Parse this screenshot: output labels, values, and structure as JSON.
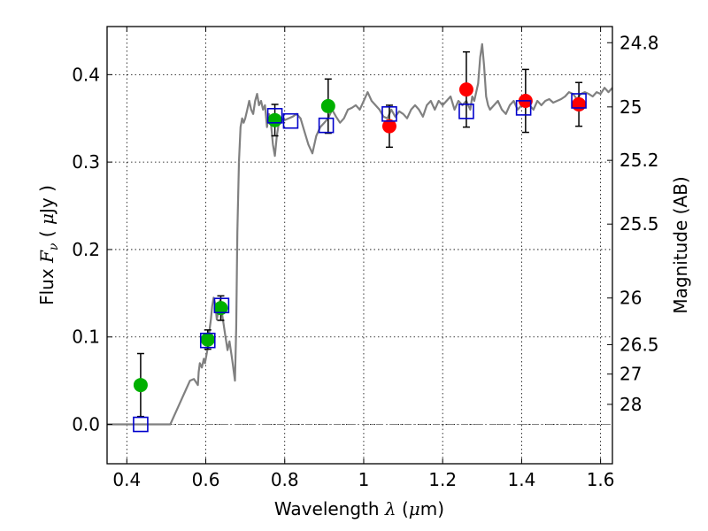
{
  "chart_data": {
    "type": "scatter",
    "title": "",
    "xlabel": {
      "prefix": "Wavelength ",
      "symbol": "λ",
      "unit_open": " (",
      "unit_mu": "μ",
      "unit_rest": "m)"
    },
    "ylabel": {
      "prefix": "Flux ",
      "symbol": "F",
      "sub": "ν",
      "unit_open": "  ( ",
      "unit_mu": "μ",
      "unit_rest": "Jy )"
    },
    "y2label": "Magnitude (AB)",
    "xlim": [
      0.35,
      1.63
    ],
    "ylim": [
      -0.045,
      0.455
    ],
    "grid": true,
    "x_ticks": [
      {
        "value": 0.4,
        "label": "0.4"
      },
      {
        "value": 0.6,
        "label": "0.6"
      },
      {
        "value": 0.8,
        "label": "0.8"
      },
      {
        "value": 1.0,
        "label": "1"
      },
      {
        "value": 1.2,
        "label": "1.2"
      },
      {
        "value": 1.4,
        "label": "1.4"
      },
      {
        "value": 1.6,
        "label": "1.6"
      }
    ],
    "y_ticks": [
      {
        "value": 0.0,
        "label": "0.0"
      },
      {
        "value": 0.1,
        "label": "0.1"
      },
      {
        "value": 0.2,
        "label": "0.2"
      },
      {
        "value": 0.3,
        "label": "0.3"
      },
      {
        "value": 0.4,
        "label": "0.4"
      }
    ],
    "mag_ticks": [
      {
        "value": 24.8,
        "label": "24.8"
      },
      {
        "value": 25.0,
        "label": "25"
      },
      {
        "value": 25.2,
        "label": "25.2"
      },
      {
        "value": 25.5,
        "label": "25.5"
      },
      {
        "value": 26.0,
        "label": "26"
      },
      {
        "value": 26.5,
        "label": "26.5"
      },
      {
        "value": 27.0,
        "label": "27"
      },
      {
        "value": 28.0,
        "label": "28"
      }
    ],
    "series": [
      {
        "kind": "model-spectrum",
        "color": "#808080",
        "x": [
          0.35,
          0.5,
          0.51,
          0.53,
          0.55,
          0.56,
          0.57,
          0.58,
          0.582,
          0.585,
          0.59,
          0.595,
          0.598,
          0.602,
          0.606,
          0.61,
          0.613,
          0.616,
          0.62,
          0.624,
          0.628,
          0.632,
          0.636,
          0.64,
          0.645,
          0.65,
          0.655,
          0.66,
          0.665,
          0.668,
          0.671,
          0.674,
          0.677,
          0.68,
          0.684,
          0.688,
          0.692,
          0.696,
          0.7,
          0.705,
          0.71,
          0.715,
          0.72,
          0.725,
          0.73,
          0.735,
          0.74,
          0.745,
          0.75,
          0.755,
          0.76,
          0.765,
          0.77,
          0.775,
          0.78,
          0.785,
          0.79,
          0.8,
          0.81,
          0.82,
          0.83,
          0.84,
          0.85,
          0.86,
          0.87,
          0.88,
          0.89,
          0.9,
          0.91,
          0.92,
          0.93,
          0.94,
          0.95,
          0.96,
          0.97,
          0.98,
          0.99,
          1.0,
          1.01,
          1.02,
          1.03,
          1.04,
          1.05,
          1.06,
          1.07,
          1.08,
          1.09,
          1.1,
          1.11,
          1.12,
          1.13,
          1.14,
          1.15,
          1.16,
          1.17,
          1.18,
          1.19,
          1.2,
          1.21,
          1.22,
          1.23,
          1.24,
          1.25,
          1.26,
          1.27,
          1.275,
          1.28,
          1.285,
          1.29,
          1.295,
          1.3,
          1.305,
          1.31,
          1.315,
          1.32,
          1.33,
          1.34,
          1.35,
          1.36,
          1.37,
          1.38,
          1.39,
          1.4,
          1.41,
          1.42,
          1.43,
          1.44,
          1.45,
          1.46,
          1.47,
          1.48,
          1.49,
          1.5,
          1.51,
          1.52,
          1.53,
          1.54,
          1.55,
          1.56,
          1.57,
          1.58,
          1.59,
          1.6,
          1.61,
          1.62,
          1.63
        ],
        "y": [
          0.0,
          0.0,
          0.0,
          0.02,
          0.04,
          0.05,
          0.052,
          0.045,
          0.06,
          0.07,
          0.065,
          0.075,
          0.07,
          0.08,
          0.09,
          0.11,
          0.12,
          0.135,
          0.145,
          0.138,
          0.12,
          0.13,
          0.142,
          0.13,
          0.115,
          0.1,
          0.085,
          0.095,
          0.08,
          0.07,
          0.06,
          0.05,
          0.11,
          0.22,
          0.3,
          0.34,
          0.35,
          0.345,
          0.35,
          0.36,
          0.37,
          0.36,
          0.355,
          0.37,
          0.378,
          0.365,
          0.37,
          0.36,
          0.365,
          0.34,
          0.355,
          0.345,
          0.32,
          0.307,
          0.33,
          0.345,
          0.35,
          0.348,
          0.35,
          0.352,
          0.355,
          0.35,
          0.335,
          0.32,
          0.31,
          0.33,
          0.34,
          0.345,
          0.35,
          0.36,
          0.352,
          0.345,
          0.35,
          0.36,
          0.362,
          0.365,
          0.36,
          0.37,
          0.38,
          0.37,
          0.365,
          0.36,
          0.352,
          0.35,
          0.36,
          0.352,
          0.358,
          0.355,
          0.35,
          0.36,
          0.365,
          0.36,
          0.352,
          0.365,
          0.37,
          0.36,
          0.37,
          0.365,
          0.37,
          0.375,
          0.36,
          0.37,
          0.365,
          0.37,
          0.36,
          0.375,
          0.37,
          0.38,
          0.39,
          0.42,
          0.435,
          0.41,
          0.375,
          0.365,
          0.36,
          0.365,
          0.37,
          0.36,
          0.355,
          0.365,
          0.37,
          0.36,
          0.365,
          0.37,
          0.365,
          0.36,
          0.37,
          0.365,
          0.37,
          0.372,
          0.368,
          0.37,
          0.372,
          0.375,
          0.38,
          0.378,
          0.372,
          0.378,
          0.38,
          0.378,
          0.375,
          0.38,
          0.378,
          0.385,
          0.38,
          0.385
        ]
      },
      {
        "kind": "green-points",
        "marker": "circle",
        "color": "#00b000",
        "points": [
          {
            "x": 0.435,
            "y": 0.045,
            "yerr": 0.036
          },
          {
            "x": 0.605,
            "y": 0.097,
            "yerr": 0.011
          },
          {
            "x": 0.638,
            "y": 0.133,
            "yerr": 0.014
          },
          {
            "x": 0.775,
            "y": 0.348,
            "yerr": 0.018
          },
          {
            "x": 0.91,
            "y": 0.364,
            "yerr": 0.031
          }
        ]
      },
      {
        "kind": "red-points",
        "marker": "circle",
        "color": "#ff0000",
        "points": [
          {
            "x": 1.065,
            "y": 0.341,
            "yerr": 0.024
          },
          {
            "x": 1.26,
            "y": 0.383,
            "yerr": 0.043
          },
          {
            "x": 1.41,
            "y": 0.37,
            "yerr": 0.036
          },
          {
            "x": 1.545,
            "y": 0.366,
            "yerr": 0.025
          }
        ]
      },
      {
        "kind": "model-squares",
        "marker": "square",
        "color": "#0000cc",
        "points": [
          {
            "x": 0.435,
            "y": 0.0
          },
          {
            "x": 0.605,
            "y": 0.096
          },
          {
            "x": 0.64,
            "y": 0.136
          },
          {
            "x": 0.775,
            "y": 0.353
          },
          {
            "x": 0.815,
            "y": 0.347
          },
          {
            "x": 0.905,
            "y": 0.342
          },
          {
            "x": 1.065,
            "y": 0.355
          },
          {
            "x": 1.26,
            "y": 0.358
          },
          {
            "x": 1.405,
            "y": 0.362
          },
          {
            "x": 1.545,
            "y": 0.37
          }
        ]
      }
    ],
    "zero_line": {
      "y": 0.0,
      "style": "dashdot",
      "color": "#808080"
    }
  }
}
